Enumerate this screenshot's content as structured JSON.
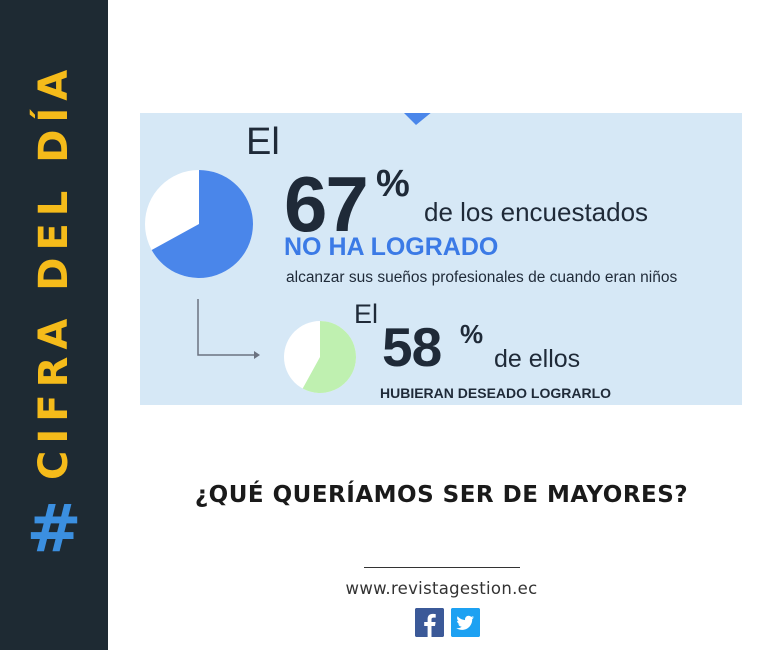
{
  "sidebar": {
    "hashtag": "#",
    "label": "CIFRA DEL DÍA"
  },
  "infographic": {
    "stat1": {
      "prefix": "El",
      "number": "67",
      "percent_sign": "%",
      "suffix": "de los encuestados",
      "highlight": "NO HA LOGRADO",
      "detail": "alcanzar sus sueños profesionales de cuando eran niños",
      "value_percent": 67
    },
    "stat2": {
      "prefix": "El",
      "number": "58",
      "percent_sign": "%",
      "suffix": "de ellos",
      "detail": "HUBIERAN DESEADO LOGRARLO",
      "value_percent": 58
    },
    "colors": {
      "background": "#d6e8f6",
      "pie1": "#4a86ea",
      "pie2": "#bff0b0",
      "highlight": "#3b7ae6"
    }
  },
  "headline": "¿QUÉ QUERÍAMOS SER DE MAYORES?",
  "footer": {
    "website": "www.revistagestion.ec",
    "social": [
      {
        "name": "facebook-icon",
        "color": "#3b5998"
      },
      {
        "name": "twitter-icon",
        "color": "#1da1f2"
      }
    ]
  },
  "colors": {
    "sidebar_bg": "#1e2a33",
    "sidebar_text": "#f5bb1a",
    "hashtag": "#3b8fe0"
  }
}
